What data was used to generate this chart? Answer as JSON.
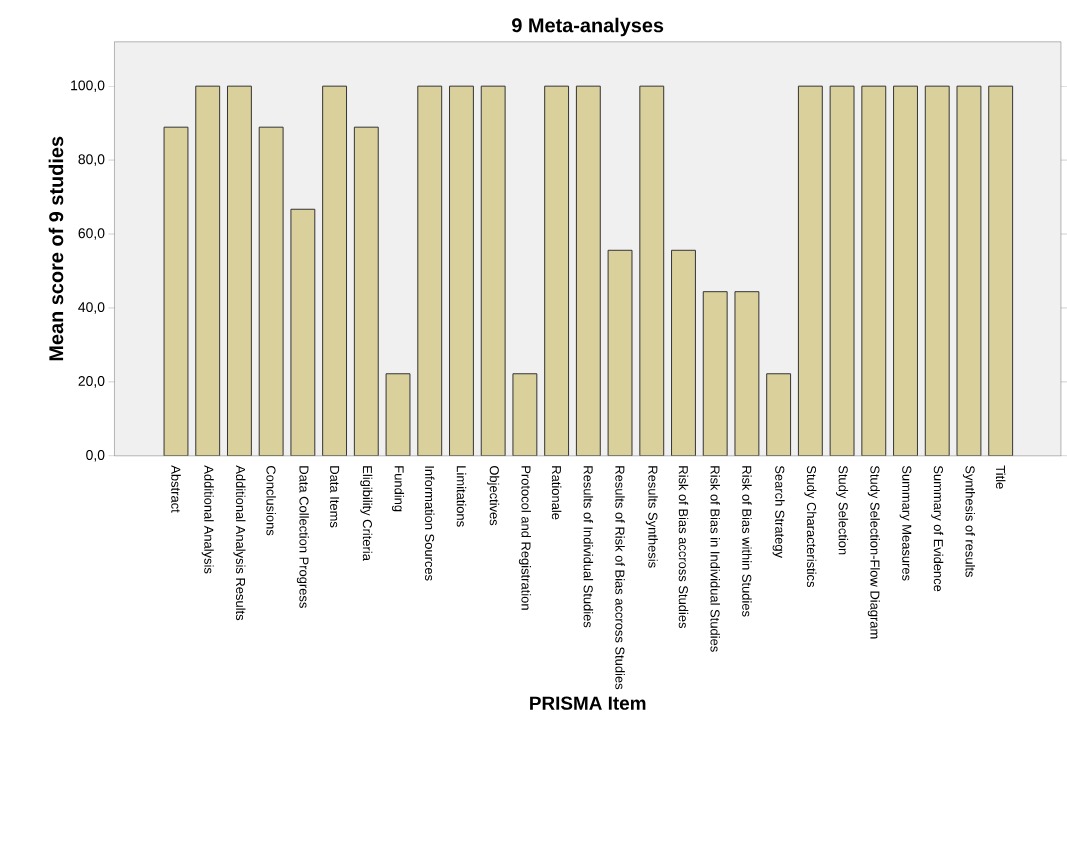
{
  "chart_data": {
    "type": "bar",
    "title": "9 Meta-analyses",
    "xlabel": "PRISMA Item",
    "ylabel": "Mean score of 9 studies",
    "categories": [
      "Abstract",
      "Additional Analysis",
      "Additional Analysis Results",
      "Conclusions",
      "Data Collection Progress",
      "Data Items",
      "Eligibility Criteria",
      "Funding",
      "Information Sources",
      "Limitations",
      "Objectives",
      "Protocol and Registration",
      "Rationale",
      "Results of Individual Studies",
      "Results of Risk of Bias accross Studies",
      "Results Synthesis",
      "Risk of Bias accross Studies",
      "Risk of Bias in Individual Studies",
      "Risk of Bias within Studies",
      "Search Strategy",
      "Study Characteristics",
      "Study Selection",
      "Study Selection-Flow Diagram",
      "Summary Measures",
      "Summary of Evidence",
      "Synthesis of results",
      "Title"
    ],
    "values": [
      88.9,
      100,
      100,
      88.9,
      66.7,
      100,
      88.9,
      22.2,
      100,
      100,
      100,
      22.2,
      100,
      100,
      55.6,
      100,
      55.6,
      44.4,
      44.4,
      22.2,
      100,
      100,
      100,
      100,
      100,
      100,
      100
    ],
    "color": "#d9d09c",
    "ylim": [
      0,
      112
    ],
    "yticks": [
      {
        "value": 0,
        "label": "0,0"
      },
      {
        "value": 20,
        "label": "20,0"
      },
      {
        "value": 40,
        "label": "40,0"
      },
      {
        "value": 60,
        "label": "60,0"
      },
      {
        "value": 80,
        "label": "80,0"
      },
      {
        "value": 100,
        "label": "100,0"
      }
    ]
  }
}
